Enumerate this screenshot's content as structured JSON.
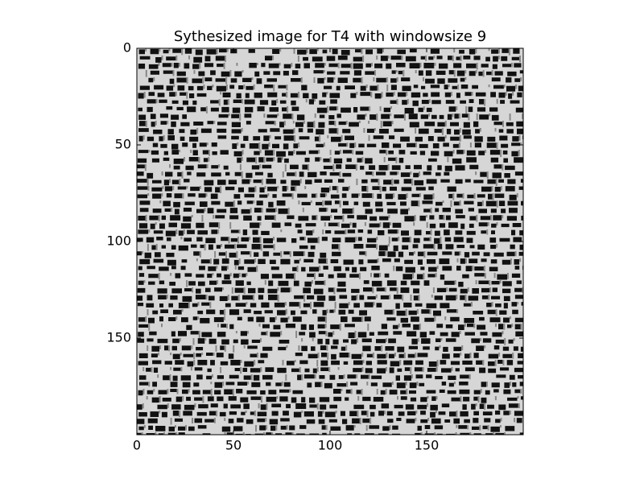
{
  "chart_data": {
    "type": "image",
    "title": "Sythesized image for T4 with windowsize 9",
    "xlim": [
      0,
      200
    ],
    "xticks": [
      0,
      50,
      100,
      150
    ],
    "ylim": [
      200,
      0
    ],
    "yticks": [
      0,
      50,
      100,
      150
    ],
    "colormap": "gray"
  }
}
